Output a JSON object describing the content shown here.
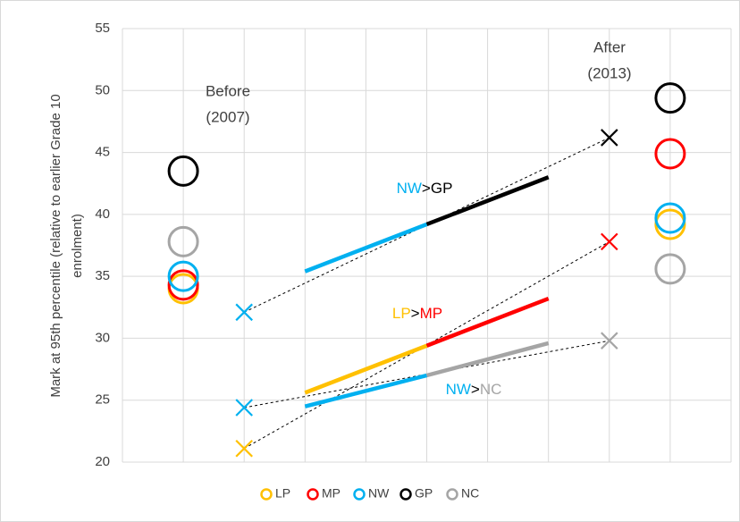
{
  "chart_data": {
    "type": "scatter",
    "y_label_lines": [
      "Mark at 95th percentile (relative to earlier Grade 10",
      "enrolment)"
    ],
    "xlim": [
      0,
      10
    ],
    "xticks": [
      0,
      1,
      2,
      3,
      4,
      5,
      6,
      7,
      8,
      9,
      10
    ],
    "ylim": [
      20,
      55
    ],
    "yticks": [
      20,
      25,
      30,
      35,
      40,
      45,
      50,
      55
    ],
    "grid": true,
    "legend": "bottom",
    "series": [
      {
        "name": "LP",
        "color": "#FFC000",
        "x": [
          1,
          9
        ],
        "values": [
          34.0,
          39.2
        ]
      },
      {
        "name": "MP",
        "color": "#FF0000",
        "x": [
          1,
          9
        ],
        "values": [
          34.3,
          44.9
        ]
      },
      {
        "name": "NW",
        "color": "#00B0F0",
        "x": [
          1,
          9
        ],
        "values": [
          35.0,
          39.7
        ]
      },
      {
        "name": "GP",
        "color": "#000000",
        "x": [
          1,
          9
        ],
        "values": [
          43.5,
          49.4
        ]
      },
      {
        "name": "NC",
        "color": "#A5A5A5",
        "x": [
          1,
          9
        ],
        "values": [
          37.8,
          35.6
        ]
      }
    ],
    "crosses": [
      {
        "color": "#00B0F0",
        "x": 2,
        "value": 32.1
      },
      {
        "color": "#00B0F0",
        "x": 2,
        "value": 24.4
      },
      {
        "color": "#FFC000",
        "x": 2,
        "value": 21.1
      },
      {
        "color": "#000000",
        "x": 8,
        "value": 46.2
      },
      {
        "color": "#FF0000",
        "x": 8,
        "value": 37.8
      },
      {
        "color": "#A5A5A5",
        "x": 8,
        "value": 29.8
      }
    ],
    "dashed_lines": [
      {
        "x": [
          2,
          8
        ],
        "values": [
          32.1,
          46.2
        ]
      },
      {
        "x": [
          2,
          8
        ],
        "values": [
          24.4,
          29.8
        ]
      },
      {
        "x": [
          2,
          8
        ],
        "values": [
          21.1,
          37.8
        ]
      }
    ],
    "segments": [
      {
        "color": "#00B0F0",
        "x": [
          3,
          5
        ],
        "values": [
          35.4,
          39.2
        ]
      },
      {
        "color": "#000000",
        "x": [
          5,
          7
        ],
        "values": [
          39.2,
          43.0
        ]
      },
      {
        "color": "#FFC000",
        "x": [
          3,
          5
        ],
        "values": [
          25.6,
          29.4
        ]
      },
      {
        "color": "#FF0000",
        "x": [
          5,
          7
        ],
        "values": [
          29.4,
          33.2
        ]
      },
      {
        "color": "#00B0F0",
        "x": [
          3,
          5
        ],
        "values": [
          24.5,
          27.0
        ]
      },
      {
        "color": "#A5A5A5",
        "x": [
          5,
          7
        ],
        "values": [
          27.0,
          29.6
        ]
      }
    ],
    "annotations": [
      {
        "lines": [
          "Before",
          "(2007)"
        ]
      },
      {
        "lines": [
          "After",
          "(2013)"
        ]
      }
    ],
    "segment_labels": [
      {
        "parts": [
          {
            "text": "NW",
            "color": "#00B0F0"
          },
          {
            "text": ">",
            "color": "#000000"
          },
          {
            "text": "GP",
            "color": "#000000"
          }
        ]
      },
      {
        "parts": [
          {
            "text": "LP",
            "color": "#FFC000"
          },
          {
            "text": ">",
            "color": "#000000"
          },
          {
            "text": "MP",
            "color": "#FF0000"
          }
        ]
      },
      {
        "parts": [
          {
            "text": "NW",
            "color": "#00B0F0"
          },
          {
            "text": ">",
            "color": "#000000"
          },
          {
            "text": "NC",
            "color": "#A5A5A5"
          }
        ]
      }
    ]
  }
}
